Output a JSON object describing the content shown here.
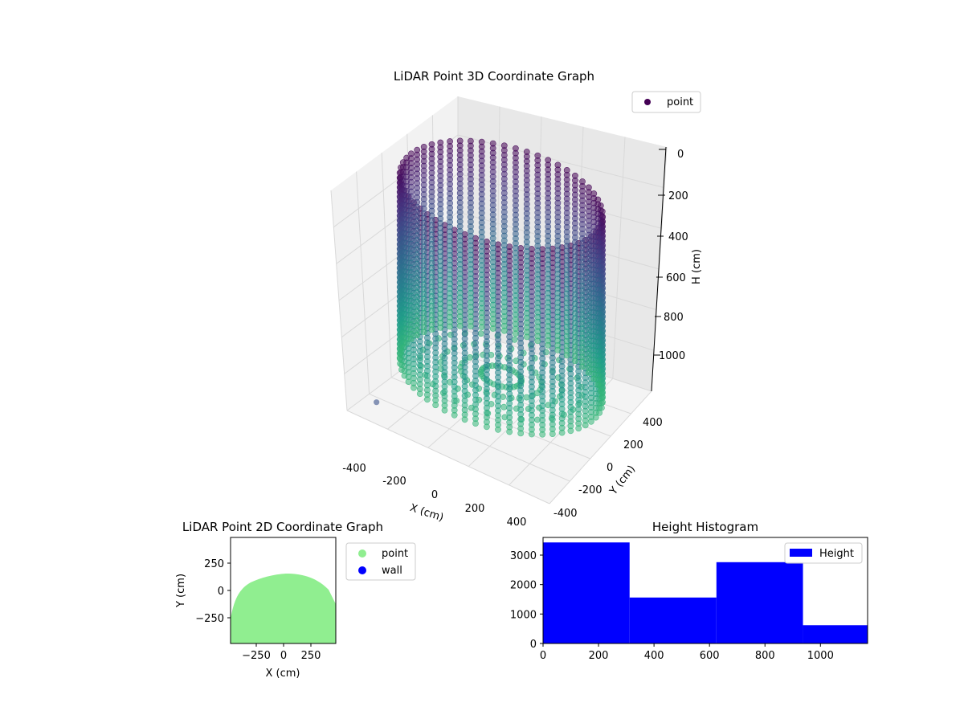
{
  "chart_data": [
    {
      "type": "scatter",
      "title": "LiDAR Point 3D Coordinate Graph",
      "xlabel": "X (cm)",
      "ylabel": "Y (cm)",
      "zlabel": "H (cm)",
      "xlim": [
        -450,
        450
      ],
      "ylim": [
        -450,
        450
      ],
      "zlim": [
        1150,
        0
      ],
      "x_ticks": [
        "-400",
        "-200",
        "0",
        "200",
        "400"
      ],
      "y_ticks": [
        "-400",
        "-200",
        "0",
        "200",
        "400"
      ],
      "z_ticks": [
        "0",
        "200",
        "400",
        "600",
        "800",
        "1000"
      ],
      "series": [
        {
          "name": "point",
          "color": "#440154",
          "colormap": "viridis",
          "shape": "cylinder-wall",
          "center": [
            0,
            -20
          ],
          "radius_x": 400,
          "radius_y": 380,
          "h_range": [
            100,
            1100
          ]
        }
      ],
      "legend": {
        "position": "top-right",
        "entries": [
          "point"
        ]
      },
      "grid": true
    },
    {
      "type": "scatter",
      "title": "LiDAR Point 2D Coordinate Graph",
      "xlabel": "X (cm)",
      "ylabel": "Y (cm)",
      "xlim": [
        -500,
        500
      ],
      "ylim": [
        -500,
        500
      ],
      "x_ticks": [
        "−250",
        "0",
        "250"
      ],
      "y_ticks": [
        "250",
        "0",
        "−250"
      ],
      "series": [
        {
          "name": "point",
          "color": "#90ee90",
          "region": "half-disc",
          "radius": 480
        },
        {
          "name": "wall",
          "color": "#0000ff",
          "values": []
        }
      ],
      "legend": {
        "position": "outside-right",
        "entries": [
          "point",
          "wall"
        ]
      }
    },
    {
      "type": "bar",
      "title": "Height Histogram",
      "xlabel": "",
      "ylabel": "",
      "bins": [
        {
          "x0": 0,
          "x1": 312,
          "count": 3430
        },
        {
          "x0": 312,
          "x1": 625,
          "count": 1560
        },
        {
          "x0": 625,
          "x1": 937,
          "count": 2760
        },
        {
          "x0": 937,
          "x1": 1250,
          "count": 620
        }
      ],
      "xlim": [
        0,
        1170
      ],
      "ylim": [
        0,
        3600
      ],
      "x_ticks": [
        0,
        200,
        400,
        600,
        800,
        1000
      ],
      "y_ticks": [
        0,
        1000,
        2000,
        3000
      ],
      "color": "#0000ff",
      "legend": {
        "position": "top-right",
        "entries": [
          "Height"
        ]
      }
    }
  ]
}
